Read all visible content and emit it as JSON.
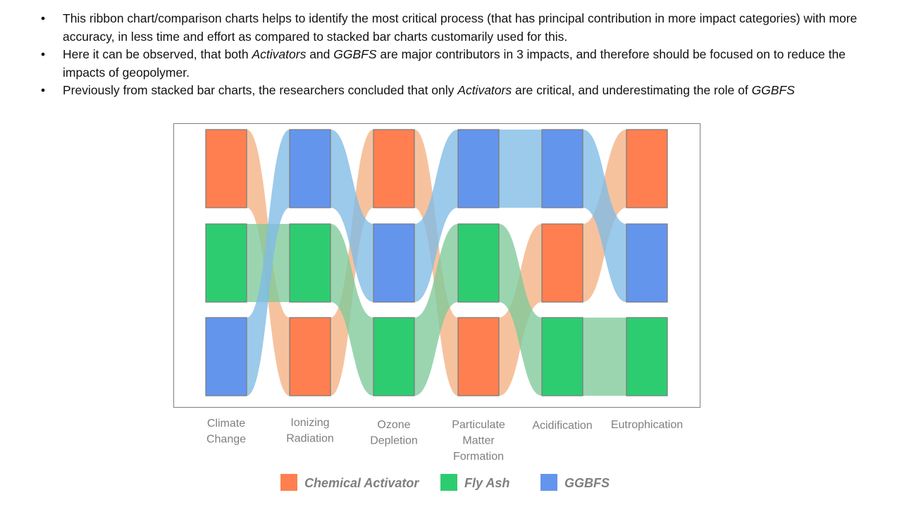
{
  "bullets": [
    {
      "segments": [
        {
          "text": "This ribbon chart/comparison charts helps to identify the most critical process (that has principal contribution in more impact categories) with more accuracy, in less time and effort as compared to stacked bar charts customarily used for this.",
          "italic": false
        }
      ]
    },
    {
      "segments": [
        {
          "text": "Here it can be observed, that both ",
          "italic": false
        },
        {
          "text": "Activators",
          "italic": true
        },
        {
          "text": " and ",
          "italic": false
        },
        {
          "text": "GGBFS",
          "italic": true
        },
        {
          "text": " are major contributors in 3 impacts, and therefore should be focused on to reduce the impacts of geopolymer.",
          "italic": false
        }
      ]
    },
    {
      "segments": [
        {
          "text": "Previously from stacked bar charts, the researchers concluded that only ",
          "italic": false
        },
        {
          "text": "Activators",
          "italic": true
        },
        {
          "text": " are critical, and underestimating the role of ",
          "italic": false
        },
        {
          "text": "GGBFS",
          "italic": true
        }
      ]
    }
  ],
  "bullet_symbol": "•",
  "chart_data": {
    "type": "ribbon",
    "categories": [
      [
        "Climate",
        "Change"
      ],
      [
        "Ionizing",
        "Radiation"
      ],
      [
        "Ozone",
        "Depletion"
      ],
      [
        "Particulate",
        "Matter",
        "Formation"
      ],
      [
        "Acidification"
      ],
      [
        "Eutrophication"
      ]
    ],
    "series": [
      {
        "name": "Chemical Activator",
        "color": "#ff7f50",
        "ribbon_color": "#f4b183",
        "rank": [
          1,
          3,
          1,
          3,
          2,
          1
        ]
      },
      {
        "name": "Fly Ash",
        "color": "#2ecc71",
        "ribbon_color": "#7fc99a",
        "rank": [
          2,
          2,
          3,
          2,
          3,
          3
        ]
      },
      {
        "name": "GGBFS",
        "color": "#6495ed",
        "ribbon_color": "#7fbbe6",
        "rank": [
          3,
          1,
          2,
          1,
          1,
          2
        ]
      }
    ],
    "rank_note": "rank 1 = top position (largest contributor)"
  }
}
